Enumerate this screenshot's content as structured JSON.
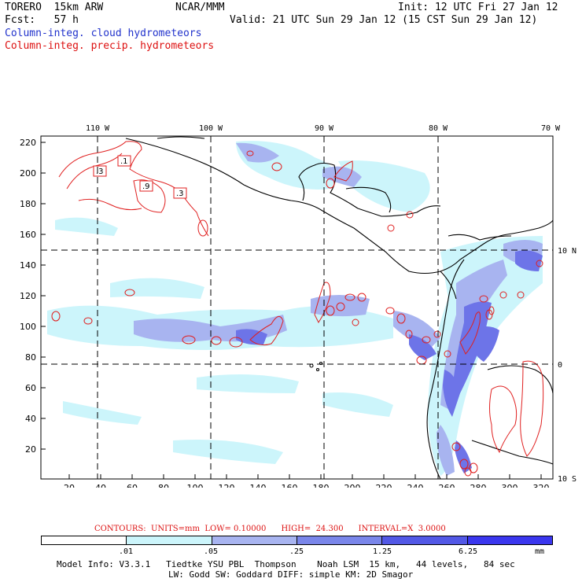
{
  "header": {
    "model": "TORERO  15km ARW",
    "org": "NCAR/MMM",
    "init": "Init: 12 UTC Fri 27 Jan 12",
    "fcst": "Fcst:   57 h",
    "valid": "Valid: 21 UTC Sun 29 Jan 12 (15 CST Sun 29 Jan 12)",
    "field_blue": "Column-integ. cloud hydrometeors",
    "field_red": "Column-integ. precip. hydrometeors"
  },
  "map": {
    "lon_labels": [
      "110 W",
      "100 W",
      "90 W",
      "80 W",
      "70 W"
    ],
    "lat_labels": [
      "10 N",
      "0",
      "10 S"
    ],
    "y_ticks": [
      "220",
      "200",
      "180",
      "160",
      "140",
      "120",
      "100",
      "80",
      "60",
      "40",
      "20"
    ],
    "x_ticks": [
      "20",
      "40",
      "60",
      "80",
      "100",
      "120",
      "140",
      "160",
      "180",
      "200",
      "220",
      "240",
      "260",
      "280",
      "300",
      "320"
    ],
    "contour_labels": [
      ".3",
      ".1",
      ".9",
      ".3"
    ],
    "colors": {
      "cloud_1": "#ccf5fb",
      "cloud_2": "#a8b4f0",
      "cloud_3": "#7a86ea",
      "cloud_4": "#5258e6",
      "precip": "#e02020",
      "coast": "#000000"
    }
  },
  "contour_info": {
    "label": "CONTOURS:  UNITS=mm  LOW= 0.10000      HIGH=  24.300      INTERVAL=X  3.0000"
  },
  "colorbar": {
    "labels": [
      ".01",
      ".05",
      ".25",
      "1.25",
      "6.25"
    ],
    "unit": "mm",
    "colors": [
      "#ffffff",
      "#ccf5fb",
      "#a8b4f0",
      "#7a86ea",
      "#5258e6",
      "#3a36ee"
    ]
  },
  "model_info": {
    "line1": "Model Info: V3.3.1   Tiedtke YSU PBL  Thompson    Noah LSM  15 km,   44 levels,   84 sec",
    "line2": "LW: Godd SW: Goddard DIFF: simple KM: 2D Smagor"
  }
}
